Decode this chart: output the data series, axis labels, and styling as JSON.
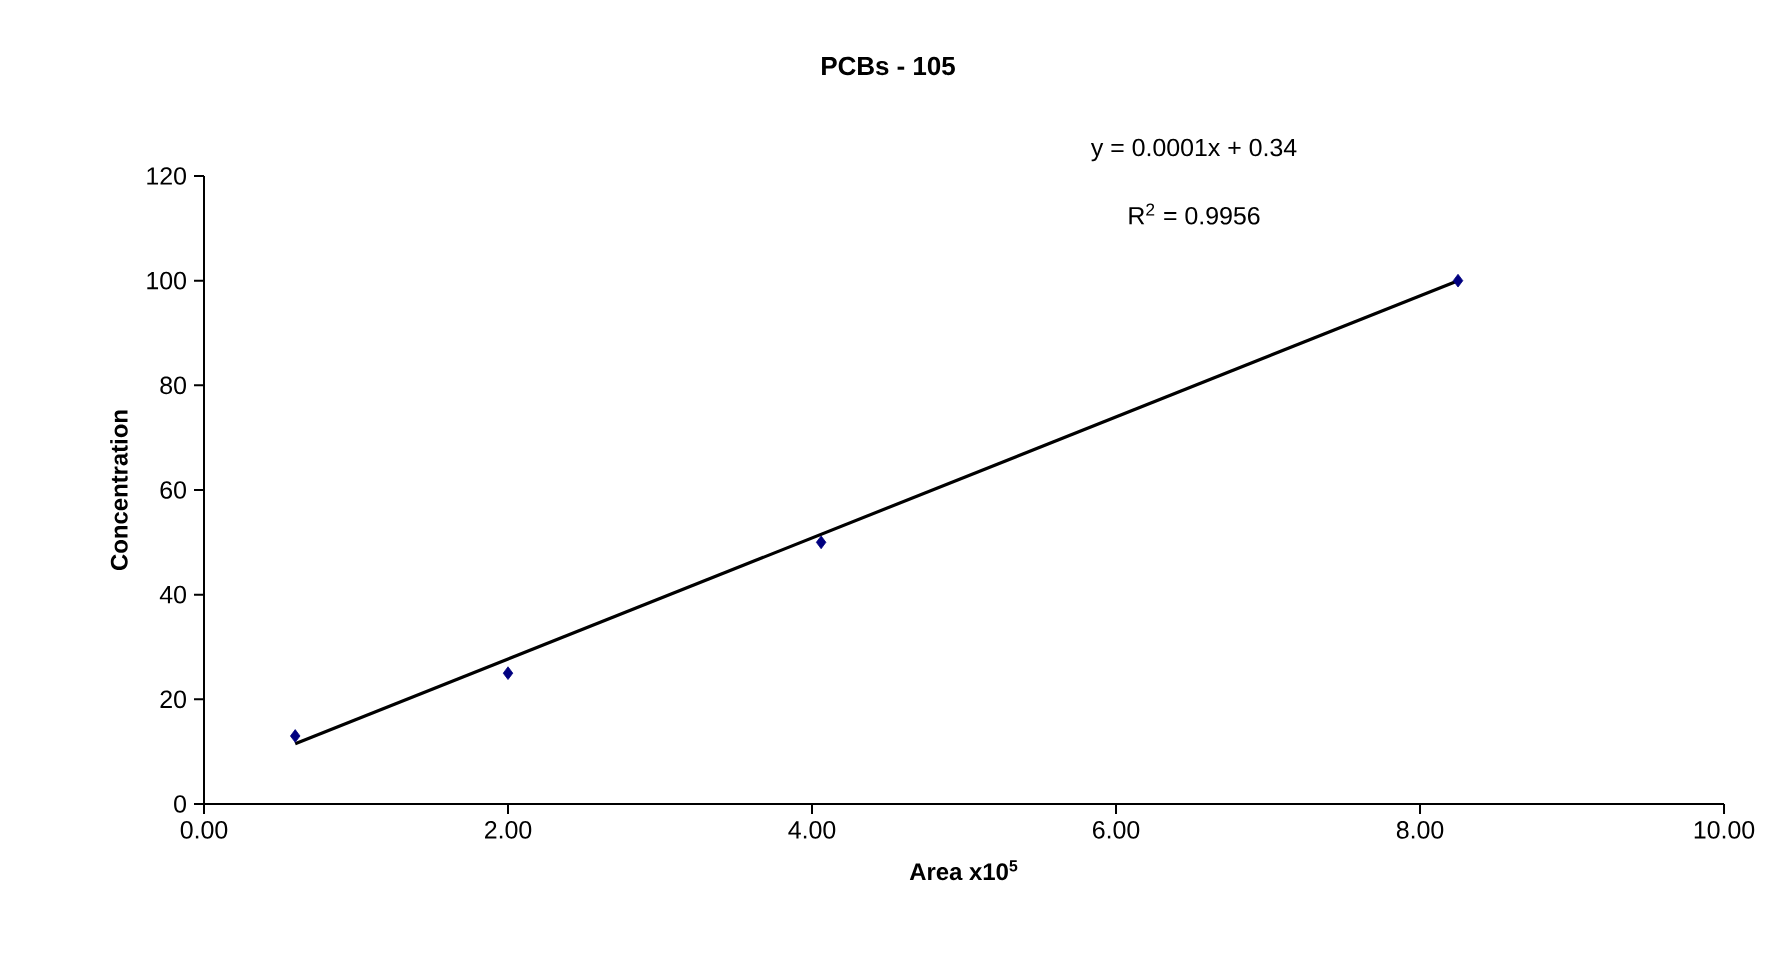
{
  "chart_data": {
    "type": "scatter",
    "title": "PCBs - 105",
    "xlabel": "Area x10$^{5}$",
    "ylabel": "Concentration",
    "xlim": [
      0,
      10
    ],
    "xticks": [
      {
        "value": 0,
        "label": "0.00"
      },
      {
        "value": 2,
        "label": "2.00"
      },
      {
        "value": 4,
        "label": "4.00"
      },
      {
        "value": 6,
        "label": "6.00"
      },
      {
        "value": 8,
        "label": "8.00"
      },
      {
        "value": 10,
        "label": "10.00"
      }
    ],
    "ylim": [
      0,
      120
    ],
    "yticks": [
      0,
      20,
      40,
      60,
      80,
      100,
      120
    ],
    "series": [
      {
        "marker": "diamond",
        "color": "#000080",
        "x": [
          0.6,
          2.0,
          4.06,
          8.25
        ],
        "values": [
          13,
          25,
          50,
          100
        ]
      },
      {
        "type": "line",
        "marker": "none",
        "color": "#000000",
        "x": [
          0.6,
          8.25
        ],
        "values": [
          11.5,
          100
        ]
      }
    ],
    "annotations": [
      "y = 0.0001x + 0.34",
      "R$^{2}$ = 0.9956"
    ]
  }
}
